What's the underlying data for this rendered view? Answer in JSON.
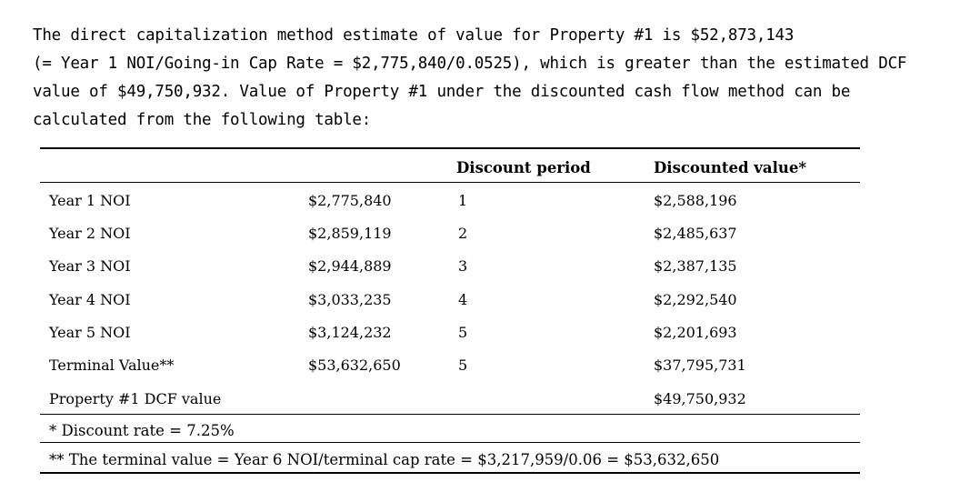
{
  "paragraph": {
    "line1": "The direct capitalization method estimate of value for Property #1 is $52,873,143",
    "line2": "(= Year 1 NOI/Going-in Cap Rate = $2,775,840/0.0525), which is greater than the estimated DCF",
    "line3": "value of $49,750,932. Value of Property #1 under the discounted cash flow method can be",
    "line4": "calculated from the following table:"
  },
  "table": {
    "headers": {
      "period": "Discount period",
      "value": "Discounted value*"
    },
    "rows": [
      {
        "label": "Year 1 NOI",
        "amount": "$2,775,840",
        "period": "1",
        "discounted": "$2,588,196"
      },
      {
        "label": "Year 2 NOI",
        "amount": "$2,859,119",
        "period": "2",
        "discounted": "$2,485,637"
      },
      {
        "label": "Year 3 NOI",
        "amount": "$2,944,889",
        "period": "3",
        "discounted": "$2,387,135"
      },
      {
        "label": "Year 4 NOI",
        "amount": "$3,033,235",
        "period": "4",
        "discounted": "$2,292,540"
      },
      {
        "label": "Year 5 NOI",
        "amount": "$3,124,232",
        "period": "5",
        "discounted": "$2,201,693"
      },
      {
        "label": "Terminal Value**",
        "amount": "$53,632,650",
        "period": "5",
        "discounted": "$37,795,731"
      }
    ],
    "total": {
      "label": "Property #1 DCF value",
      "value": "$49,750,932"
    },
    "footnotes": {
      "discount_rate": "* Discount rate = 7.25%",
      "terminal_value": "** The terminal value = Year 6 NOI/terminal cap rate = $3,217,959/0.06 = $53,632,650"
    }
  }
}
